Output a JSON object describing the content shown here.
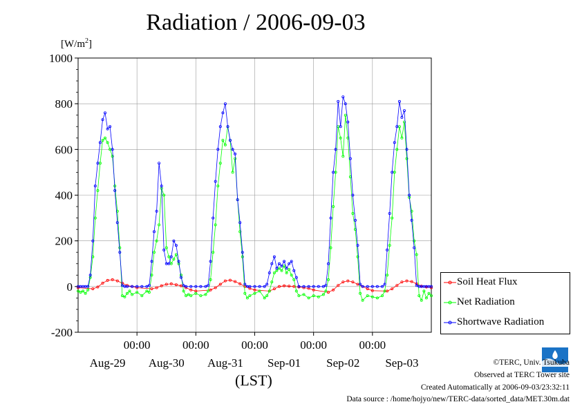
{
  "chart_data": {
    "type": "line",
    "title": "Radiation / 2006-09-03",
    "ylabel": "[W/m2]",
    "ylabel_prefix": "[W/m",
    "ylabel_sup": "2",
    "ylabel_suffix": "]",
    "xlabel": "(LST)",
    "ylim": [
      -200,
      1000
    ],
    "y_ticks": [
      "1000",
      "800",
      "600",
      "400",
      "200",
      "0",
      "-200"
    ],
    "x_tick_labels": [
      "00:00",
      "00:00",
      "00:00",
      "00:00",
      "00:00"
    ],
    "x_day_labels": [
      "Aug-29",
      "Aug-30",
      "Aug-31",
      "Sep-01",
      "Sep-02",
      "Sep-03"
    ],
    "grid": true,
    "legend_position": "right",
    "series": [
      {
        "name": "Soil Heat Flux",
        "color": "#ff0000",
        "x": [
          0,
          6,
          8,
          10,
          12,
          14,
          16,
          18,
          20,
          22,
          24,
          30,
          32,
          34,
          36,
          38,
          40,
          42,
          44,
          46,
          48,
          54,
          56,
          58,
          60,
          62,
          64,
          66,
          68,
          70,
          72,
          78,
          80,
          82,
          84,
          86,
          88,
          90,
          92,
          94,
          96,
          102,
          104,
          106,
          108,
          110,
          112,
          114,
          116,
          118,
          120,
          126,
          128,
          130,
          132,
          134,
          136,
          138,
          140,
          142,
          144
        ],
        "values": [
          -5,
          -10,
          -2,
          15,
          27,
          30,
          25,
          15,
          5,
          0,
          -5,
          -10,
          -5,
          3,
          10,
          12,
          8,
          3,
          -5,
          -15,
          -20,
          -15,
          -5,
          10,
          25,
          28,
          22,
          12,
          0,
          -8,
          -15,
          -20,
          -10,
          0,
          3,
          2,
          0,
          -2,
          -5,
          -8,
          -15,
          -25,
          -15,
          5,
          20,
          25,
          20,
          10,
          0,
          -10,
          -18,
          -20,
          -10,
          5,
          20,
          25,
          22,
          12,
          2,
          -2,
          -5
        ]
      },
      {
        "name": "Net Radiation",
        "color": "#00ff00",
        "x": [
          0,
          1,
          2,
          3,
          4,
          5,
          6,
          7,
          8,
          9,
          10,
          11,
          12,
          13,
          14,
          15,
          16,
          17,
          18,
          19,
          20,
          21,
          22,
          24,
          26,
          28,
          29,
          30,
          31,
          32,
          33,
          34,
          35,
          36,
          37,
          38,
          39,
          40,
          41,
          42,
          43,
          44,
          45,
          46,
          48,
          50,
          52,
          53,
          54,
          55,
          56,
          57,
          58,
          59,
          60,
          61,
          62,
          63,
          64,
          65,
          66,
          67,
          68,
          69,
          70,
          72,
          74,
          76,
          77,
          78,
          79,
          80,
          81,
          82,
          83,
          84,
          85,
          86,
          87,
          88,
          89,
          90,
          92,
          94,
          96,
          98,
          100,
          101,
          102,
          103,
          104,
          105,
          106,
          107,
          108,
          109,
          110,
          111,
          112,
          113,
          114,
          115,
          116,
          118,
          120,
          122,
          124,
          125,
          126,
          127,
          128,
          129,
          130,
          131,
          132,
          133,
          134,
          135,
          136,
          137,
          138,
          139,
          140,
          141,
          142,
          143,
          144
        ],
        "values": [
          -20,
          -25,
          -20,
          -30,
          -15,
          40,
          130,
          300,
          420,
          540,
          640,
          650,
          630,
          600,
          570,
          440,
          330,
          170,
          -40,
          -45,
          -30,
          -20,
          -35,
          -25,
          -40,
          -20,
          -25,
          50,
          150,
          200,
          270,
          430,
          400,
          170,
          130,
          100,
          120,
          140,
          100,
          50,
          -20,
          -40,
          -35,
          -40,
          -30,
          -40,
          -35,
          -20,
          30,
          150,
          270,
          440,
          540,
          640,
          620,
          700,
          640,
          500,
          560,
          380,
          240,
          130,
          -30,
          -50,
          -40,
          -30,
          -20,
          -50,
          -40,
          -20,
          20,
          60,
          70,
          80,
          70,
          90,
          60,
          75,
          50,
          30,
          -20,
          -40,
          -35,
          -50,
          -40,
          -45,
          -35,
          -20,
          30,
          170,
          350,
          500,
          700,
          650,
          570,
          750,
          650,
          480,
          320,
          250,
          130,
          -30,
          -60,
          -40,
          -45,
          -50,
          -40,
          -20,
          50,
          180,
          300,
          500,
          600,
          700,
          650,
          720,
          560,
          390,
          330,
          200,
          140,
          -40,
          -60,
          -20,
          -50,
          -30,
          -40
        ]
      },
      {
        "name": "Shortwave Radiation",
        "color": "#0000ff",
        "x": [
          0,
          1,
          2,
          3,
          4,
          5,
          6,
          7,
          8,
          9,
          10,
          11,
          12,
          13,
          14,
          15,
          16,
          17,
          18,
          19,
          20,
          22,
          24,
          26,
          28,
          29,
          30,
          31,
          32,
          33,
          34,
          35,
          36,
          37,
          38,
          39,
          40,
          41,
          42,
          43,
          44,
          46,
          48,
          50,
          52,
          53,
          54,
          55,
          56,
          57,
          58,
          59,
          60,
          61,
          62,
          63,
          64,
          65,
          66,
          67,
          68,
          69,
          70,
          72,
          74,
          76,
          77,
          78,
          79,
          80,
          81,
          82,
          83,
          84,
          85,
          86,
          87,
          88,
          89,
          90,
          92,
          94,
          96,
          98,
          100,
          101,
          102,
          103,
          104,
          105,
          106,
          107,
          108,
          109,
          110,
          111,
          112,
          113,
          114,
          115,
          116,
          118,
          120,
          122,
          124,
          125,
          126,
          127,
          128,
          129,
          130,
          131,
          132,
          133,
          134,
          135,
          136,
          137,
          138,
          139,
          140,
          141,
          142,
          143,
          144
        ],
        "values": [
          0,
          0,
          0,
          0,
          0,
          50,
          200,
          440,
          540,
          630,
          730,
          760,
          690,
          700,
          600,
          420,
          280,
          150,
          5,
          0,
          0,
          0,
          0,
          0,
          0,
          5,
          110,
          240,
          330,
          540,
          440,
          160,
          100,
          100,
          130,
          200,
          180,
          110,
          40,
          5,
          0,
          0,
          0,
          0,
          0,
          5,
          110,
          300,
          460,
          600,
          700,
          760,
          800,
          700,
          640,
          600,
          580,
          380,
          280,
          150,
          10,
          0,
          0,
          0,
          0,
          0,
          10,
          60,
          100,
          130,
          80,
          100,
          90,
          110,
          80,
          100,
          110,
          70,
          40,
          0,
          0,
          0,
          0,
          0,
          0,
          5,
          100,
          300,
          500,
          600,
          810,
          700,
          830,
          800,
          720,
          560,
          400,
          290,
          180,
          10,
          0,
          0,
          0,
          0,
          0,
          10,
          160,
          320,
          500,
          630,
          700,
          810,
          740,
          770,
          600,
          400,
          290,
          170,
          5,
          0,
          0,
          0,
          0,
          0,
          0
        ]
      }
    ]
  },
  "credits": {
    "copyright": "©TERC, Univ. Tsukuba",
    "site": "Observed at TERC Tower site",
    "created": "Created Automatically at 2006-09-03/23:32:11",
    "source": "Data source : /home/hojyo/new/TERC-data/sorted_data/MET.30m.dat"
  },
  "logo": {
    "name": "TERC",
    "color": "#1a73c6"
  }
}
